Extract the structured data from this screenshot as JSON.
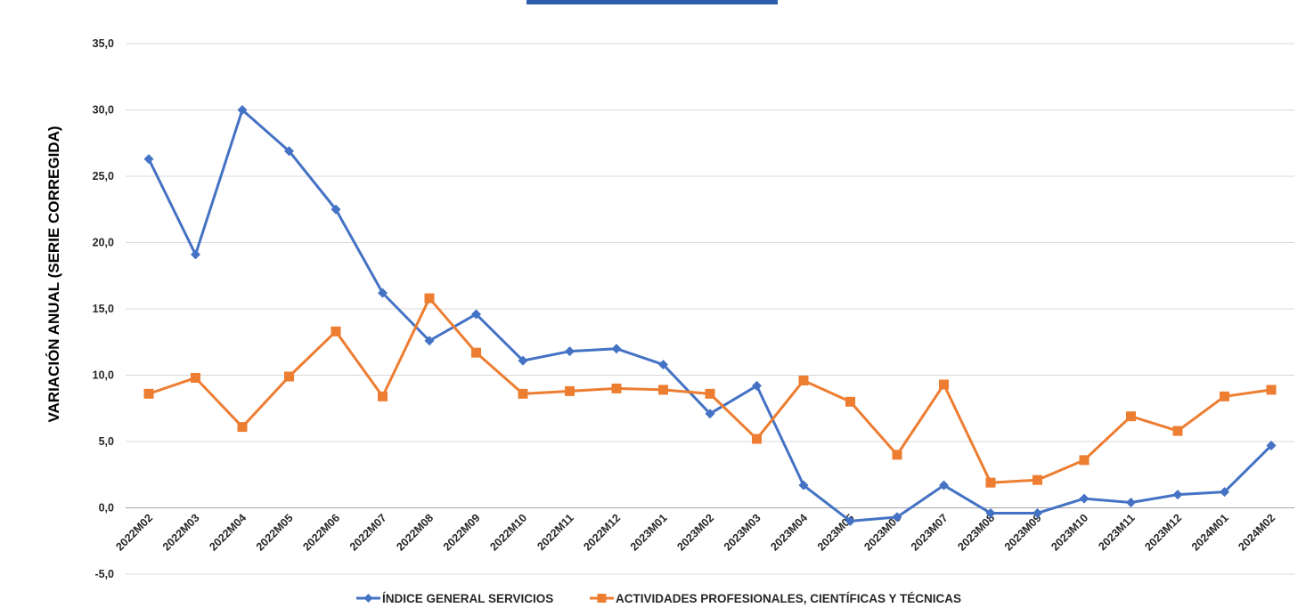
{
  "chart_data": {
    "type": "line",
    "title": "",
    "xlabel": "",
    "ylabel": "VARIACIÓN ANUAL (SERIE CORREGIDA)",
    "ylim": [
      -5,
      35
    ],
    "yticks": [
      35,
      30,
      25,
      20,
      15,
      10,
      5,
      0,
      -5
    ],
    "ytick_labels": [
      "35,0",
      "30,0",
      "25,0",
      "20,0",
      "15,0",
      "10,0",
      "5,0",
      "0,0",
      "-5,0"
    ],
    "grid": true,
    "legend_position": "bottom",
    "categories": [
      "2022M02",
      "2022M03",
      "2022M04",
      "2022M05",
      "2022M06",
      "2022M07",
      "2022M08",
      "2022M09",
      "2022M10",
      "2022M11",
      "2022M12",
      "2023M01",
      "2023M02",
      "2023M03",
      "2023M04",
      "2023M05",
      "2023M06",
      "2023M07",
      "2023M08",
      "2023M09",
      "2023M10",
      "2023M11",
      "2023M12",
      "2024M01",
      "2024M02"
    ],
    "series": [
      {
        "name": "ÍNDICE GENERAL SERVICIOS",
        "color": "#4472C4",
        "marker": "diamond",
        "values": [
          26.3,
          19.1,
          30.0,
          26.9,
          22.5,
          16.2,
          12.6,
          14.6,
          11.1,
          11.8,
          12.0,
          10.8,
          7.1,
          9.2,
          1.7,
          -1.0,
          -0.7,
          1.7,
          -0.4,
          -0.4,
          0.7,
          0.4,
          1.0,
          1.2,
          4.7
        ]
      },
      {
        "name": "ACTIVIDADES PROFESIONALES, CIENTÍFICAS Y TÉCNICAS",
        "color": "#ED7D31",
        "marker": "square",
        "values": [
          8.6,
          9.8,
          6.1,
          9.9,
          13.3,
          8.4,
          15.8,
          11.7,
          8.6,
          8.8,
          9.0,
          8.9,
          8.6,
          5.2,
          9.6,
          8.0,
          4.0,
          9.3,
          1.9,
          2.1,
          3.6,
          6.9,
          5.8,
          8.4,
          8.9
        ]
      }
    ]
  },
  "header_bar_color": "#2F5DAD"
}
